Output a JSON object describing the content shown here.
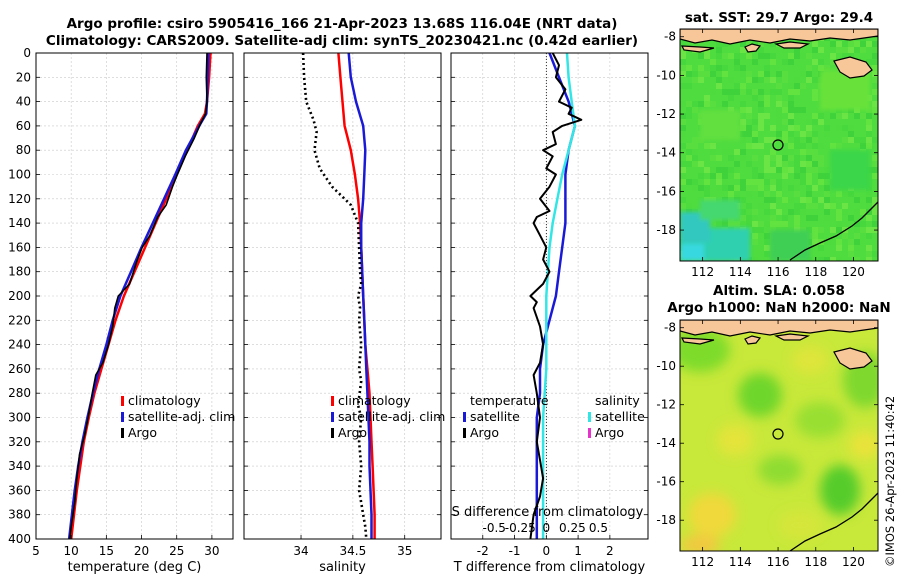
{
  "title_line1": "Argo profile: csiro 5905416_166 21-Apr-2023 13.68S 116.04E (NRT data)",
  "title_line2": "Climatology: CARS2009. Satellite-adj clim: synTS_20230421.nc (0.42d earlier)",
  "colors": {
    "climatology": "#ff0000",
    "satellite": "#1a1ad6",
    "argo": "#000000",
    "salinity_satellite": "#33e6e6",
    "salinity_argo": "#e633cc",
    "land": "#f7c79a"
  },
  "chart_data": [
    {
      "id": "temperature",
      "type": "line",
      "xlabel": "temperature (deg C)",
      "ylabel": "",
      "xlim": [
        5,
        33
      ],
      "ylim": [
        400,
        0
      ],
      "xticks": [
        5,
        10,
        15,
        20,
        25,
        30
      ],
      "yticks": [
        0,
        20,
        40,
        60,
        80,
        100,
        120,
        140,
        160,
        180,
        200,
        220,
        240,
        260,
        280,
        300,
        320,
        340,
        360,
        380,
        400
      ],
      "legend": [
        "climatology",
        "satellite-adj. clim",
        "Argo"
      ],
      "series": [
        {
          "name": "climatology",
          "color": "#ff0000",
          "width": 2.5,
          "points": [
            [
              29.8,
              0
            ],
            [
              29.6,
              20
            ],
            [
              29.3,
              40
            ],
            [
              29.0,
              50
            ],
            [
              28.0,
              60
            ],
            [
              26.5,
              80
            ],
            [
              25.0,
              100
            ],
            [
              23.5,
              120
            ],
            [
              22.0,
              140
            ],
            [
              20.5,
              160
            ],
            [
              19.0,
              180
            ],
            [
              17.5,
              200
            ],
            [
              16.3,
              220
            ],
            [
              15.3,
              240
            ],
            [
              14.3,
              260
            ],
            [
              13.3,
              280
            ],
            [
              12.5,
              300
            ],
            [
              11.8,
              320
            ],
            [
              11.3,
              340
            ],
            [
              10.8,
              360
            ],
            [
              10.4,
              380
            ],
            [
              10.0,
              400
            ]
          ]
        },
        {
          "name": "satellite-adj. clim",
          "color": "#1a1ad6",
          "width": 2.5,
          "points": [
            [
              29.5,
              0
            ],
            [
              29.4,
              20
            ],
            [
              29.3,
              40
            ],
            [
              29.2,
              50
            ],
            [
              28.2,
              60
            ],
            [
              26.3,
              80
            ],
            [
              24.8,
              100
            ],
            [
              23.2,
              120
            ],
            [
              21.6,
              140
            ],
            [
              20.0,
              160
            ],
            [
              18.5,
              180
            ],
            [
              17.0,
              200
            ],
            [
              15.9,
              220
            ],
            [
              15.0,
              240
            ],
            [
              14.0,
              260
            ],
            [
              13.1,
              280
            ],
            [
              12.3,
              300
            ],
            [
              11.6,
              320
            ],
            [
              11.0,
              340
            ],
            [
              10.5,
              360
            ],
            [
              10.1,
              380
            ],
            [
              9.7,
              400
            ]
          ]
        },
        {
          "name": "Argo",
          "color": "#000000",
          "width": 1.6,
          "points": [
            [
              29.3,
              0
            ],
            [
              29.2,
              20
            ],
            [
              29.3,
              40
            ],
            [
              29.1,
              50
            ],
            [
              28.4,
              58
            ],
            [
              27.5,
              70
            ],
            [
              26.2,
              85
            ],
            [
              25.1,
              100
            ],
            [
              24.4,
              110
            ],
            [
              23.5,
              125
            ],
            [
              22.3,
              135
            ],
            [
              21.2,
              150
            ],
            [
              20.1,
              160
            ],
            [
              19.3,
              172
            ],
            [
              18.3,
              190
            ],
            [
              16.7,
              200
            ],
            [
              16.2,
              210
            ],
            [
              15.9,
              225
            ],
            [
              15.3,
              240
            ],
            [
              14.5,
              255
            ],
            [
              13.5,
              265
            ],
            [
              13.0,
              280
            ],
            [
              12.4,
              300
            ],
            [
              11.9,
              315
            ],
            [
              11.2,
              330
            ],
            [
              10.8,
              350
            ],
            [
              10.5,
              370
            ],
            [
              10.0,
              390
            ],
            [
              9.8,
              400
            ]
          ]
        }
      ]
    },
    {
      "id": "salinity",
      "type": "line",
      "xlabel": "salinity",
      "ylabel": "",
      "xlim": [
        33.45,
        35.35
      ],
      "ylim": [
        400,
        0
      ],
      "xticks": [
        34,
        34.5,
        35
      ],
      "xticklabels": [
        "34",
        "34.5",
        "35"
      ],
      "legend": [
        "climatology",
        "satellite-adj. clim",
        "Argo"
      ],
      "series": [
        {
          "name": "climatology",
          "color": "#ff0000",
          "width": 2.5,
          "points": [
            [
              34.36,
              0
            ],
            [
              34.38,
              20
            ],
            [
              34.4,
              40
            ],
            [
              34.42,
              60
            ],
            [
              34.48,
              80
            ],
            [
              34.52,
              100
            ],
            [
              34.55,
              120
            ],
            [
              34.57,
              140
            ],
            [
              34.58,
              160
            ],
            [
              34.59,
              180
            ],
            [
              34.6,
              200
            ],
            [
              34.61,
              220
            ],
            [
              34.62,
              240
            ],
            [
              34.64,
              260
            ],
            [
              34.66,
              280
            ],
            [
              34.67,
              300
            ],
            [
              34.68,
              320
            ],
            [
              34.69,
              340
            ],
            [
              34.7,
              360
            ],
            [
              34.71,
              380
            ],
            [
              34.71,
              400
            ]
          ]
        },
        {
          "name": "satellite-adj. clim",
          "color": "#1a1ad6",
          "width": 2.5,
          "points": [
            [
              34.46,
              0
            ],
            [
              34.48,
              20
            ],
            [
              34.53,
              40
            ],
            [
              34.6,
              60
            ],
            [
              34.62,
              80
            ],
            [
              34.61,
              100
            ],
            [
              34.6,
              120
            ],
            [
              34.58,
              140
            ],
            [
              34.58,
              160
            ],
            [
              34.59,
              180
            ],
            [
              34.6,
              200
            ],
            [
              34.61,
              220
            ],
            [
              34.62,
              240
            ],
            [
              34.63,
              260
            ],
            [
              34.64,
              280
            ],
            [
              34.65,
              300
            ],
            [
              34.66,
              320
            ],
            [
              34.66,
              340
            ],
            [
              34.67,
              360
            ],
            [
              34.68,
              380
            ],
            [
              34.68,
              400
            ]
          ]
        },
        {
          "name": "Argo",
          "color": "#000000",
          "width": 2.6,
          "dash": "2 3",
          "points": [
            [
              34.02,
              0
            ],
            [
              34.03,
              20
            ],
            [
              34.05,
              40
            ],
            [
              34.12,
              55
            ],
            [
              34.15,
              65
            ],
            [
              34.13,
              80
            ],
            [
              34.18,
              95
            ],
            [
              34.3,
              110
            ],
            [
              34.48,
              125
            ],
            [
              34.55,
              140
            ],
            [
              34.56,
              160
            ],
            [
              34.57,
              180
            ],
            [
              34.58,
              190
            ],
            [
              34.55,
              200
            ],
            [
              34.57,
              210
            ],
            [
              34.56,
              220
            ],
            [
              34.58,
              240
            ],
            [
              34.56,
              260
            ],
            [
              34.58,
              270
            ],
            [
              34.55,
              290
            ],
            [
              34.58,
              300
            ],
            [
              34.56,
              320
            ],
            [
              34.58,
              340
            ],
            [
              34.56,
              360
            ],
            [
              34.58,
              370
            ],
            [
              34.6,
              380
            ],
            [
              34.62,
              390
            ],
            [
              34.63,
              400
            ]
          ]
        }
      ]
    },
    {
      "id": "differences",
      "type": "line",
      "xlabel": "T difference from climatology",
      "top_xlabel": "S difference from climatology",
      "ylabel": "",
      "xlim": [
        -3,
        3.2
      ],
      "ylim": [
        400,
        0
      ],
      "xticks": [
        -2,
        -1,
        0,
        1,
        2
      ],
      "xticklabels": [
        "-2",
        "-1",
        "0",
        "1",
        "2"
      ],
      "top_xticks": [
        -0.5,
        -0.25,
        0,
        0.25,
        0.5
      ],
      "top_xticklabels": [
        "-0.5",
        "-0.25",
        "0",
        "0.25",
        "0.5"
      ],
      "legend_temperature_title": "temperature",
      "legend_salinity_title": "salinity",
      "legend_temperature": [
        "satellite",
        "Argo"
      ],
      "legend_salinity": [
        "satellite",
        "Argo"
      ],
      "series": [
        {
          "name": "T satellite",
          "color": "#1a1ad6",
          "width": 2.5,
          "points": [
            [
              0.1,
              0
            ],
            [
              0.4,
              20
            ],
            [
              0.7,
              40
            ],
            [
              0.9,
              60
            ],
            [
              0.7,
              80
            ],
            [
              0.6,
              100
            ],
            [
              0.6,
              120
            ],
            [
              0.6,
              140
            ],
            [
              0.5,
              160
            ],
            [
              0.4,
              180
            ],
            [
              0.3,
              200
            ],
            [
              0.1,
              220
            ],
            [
              -0.1,
              240
            ],
            [
              -0.2,
              260
            ],
            [
              -0.2,
              280
            ],
            [
              -0.3,
              300
            ],
            [
              -0.3,
              320
            ],
            [
              -0.3,
              340
            ],
            [
              -0.3,
              360
            ],
            [
              -0.3,
              380
            ],
            [
              -0.3,
              400
            ]
          ]
        },
        {
          "name": "S satellite",
          "color": "#33e6e6",
          "width": 2.5,
          "points": [
            [
              0.65,
              0
            ],
            [
              0.7,
              20
            ],
            [
              0.8,
              40
            ],
            [
              0.9,
              60
            ],
            [
              0.7,
              80
            ],
            [
              0.5,
              100
            ],
            [
              0.35,
              120
            ],
            [
              0.2,
              140
            ],
            [
              0.1,
              160
            ],
            [
              0.05,
              180
            ],
            [
              0.0,
              200
            ],
            [
              0.0,
              220
            ],
            [
              0.0,
              240
            ],
            [
              0.0,
              260
            ],
            [
              -0.05,
              280
            ],
            [
              -0.1,
              300
            ],
            [
              -0.1,
              320
            ],
            [
              -0.1,
              340
            ],
            [
              -0.1,
              360
            ],
            [
              -0.1,
              380
            ],
            [
              -0.1,
              400
            ]
          ]
        },
        {
          "name": "T Argo",
          "color": "#000000",
          "width": 2.0,
          "points": [
            [
              0.2,
              0
            ],
            [
              0.4,
              10
            ],
            [
              0.3,
              20
            ],
            [
              0.6,
              30
            ],
            [
              0.4,
              40
            ],
            [
              0.8,
              45
            ],
            [
              0.7,
              50
            ],
            [
              1.1,
              55
            ],
            [
              0.5,
              60
            ],
            [
              0.2,
              65
            ],
            [
              0.3,
              75
            ],
            [
              -0.1,
              80
            ],
            [
              0.2,
              85
            ],
            [
              0.0,
              95
            ],
            [
              0.3,
              100
            ],
            [
              0.1,
              110
            ],
            [
              -0.2,
              120
            ],
            [
              0.1,
              130
            ],
            [
              -0.3,
              135
            ],
            [
              -0.4,
              140
            ],
            [
              -0.2,
              150
            ],
            [
              0.0,
              160
            ],
            [
              -0.1,
              170
            ],
            [
              0.1,
              180
            ],
            [
              -0.1,
              190
            ],
            [
              -0.5,
              200
            ],
            [
              -0.3,
              205
            ],
            [
              -0.4,
              210
            ],
            [
              -0.2,
              225
            ],
            [
              -0.1,
              240
            ],
            [
              -0.2,
              255
            ],
            [
              -0.4,
              265
            ],
            [
              -0.3,
              280
            ],
            [
              -0.2,
              300
            ],
            [
              -0.3,
              320
            ],
            [
              -0.2,
              335
            ],
            [
              -0.1,
              350
            ],
            [
              -0.2,
              365
            ],
            [
              -0.4,
              380
            ],
            [
              -0.5,
              400
            ]
          ]
        }
      ]
    },
    {
      "id": "sst_map",
      "type": "heatmap",
      "title": "sat. SST: 29.7 Argo: 29.4",
      "xticks": [
        112,
        114,
        116,
        118,
        120
      ],
      "yticks": [
        -8,
        -10,
        -12,
        -14,
        -16,
        -18
      ],
      "xlim": [
        110.8,
        121.3
      ],
      "ylim": [
        -19.6,
        -7.6
      ],
      "marker": [
        116.04,
        -13.68
      ]
    },
    {
      "id": "sla_map",
      "type": "heatmap",
      "title_line1": "Altim. SLA: 0.058",
      "title_line2": "Argo h1000: NaN h2000: NaN",
      "xticks": [
        112,
        114,
        116,
        118,
        120
      ],
      "yticks": [
        -8,
        -10,
        -12,
        -14,
        -16,
        -18
      ],
      "xlim": [
        110.8,
        121.3
      ],
      "ylim": [
        -19.6,
        -7.6
      ],
      "marker": [
        116.04,
        -13.68
      ]
    }
  ],
  "credit": "©IMOS 26-Apr-2023 11:40:42"
}
